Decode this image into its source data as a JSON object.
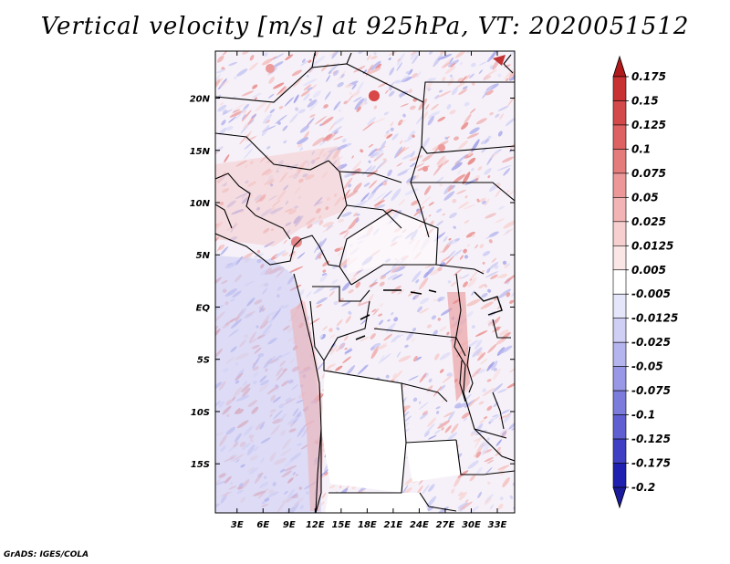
{
  "title": "Vertical velocity [m/s] at 925hPa, VT: 2020051512",
  "credit": "GrADS: IGES/COLA",
  "map": {
    "lon_ticks": [
      "3E",
      "6E",
      "9E",
      "12E",
      "15E",
      "18E",
      "21E",
      "24E",
      "27E",
      "30E",
      "33E"
    ],
    "lat_ticks": [
      "20N",
      "15N",
      "10N",
      "5N",
      "EQ",
      "5S",
      "10S",
      "15S"
    ],
    "lon_range": [
      0.5,
      35
    ],
    "lat_range": [
      -19.7,
      24.5
    ]
  },
  "colorbar": {
    "levels": [
      "0.175",
      "0.15",
      "0.125",
      "0.1",
      "0.075",
      "0.05",
      "0.025",
      "0.0125",
      "0.005",
      "-0.005",
      "-0.0125",
      "-0.025",
      "-0.05",
      "-0.075",
      "-0.1",
      "-0.125",
      "-0.175",
      "-0.2"
    ],
    "colors": [
      "#b01a1a",
      "#c83232",
      "#d44a4a",
      "#de6262",
      "#e57c7c",
      "#ec9898",
      "#f2b4b4",
      "#f7cfcf",
      "#fbe6e6",
      "#ffffff",
      "#e6e6fb",
      "#cfcff5",
      "#b4b4ee",
      "#9898e6",
      "#7c7cdc",
      "#5f5fd2",
      "#3f3fc4",
      "#2020b0",
      "#1a1a9a"
    ]
  }
}
